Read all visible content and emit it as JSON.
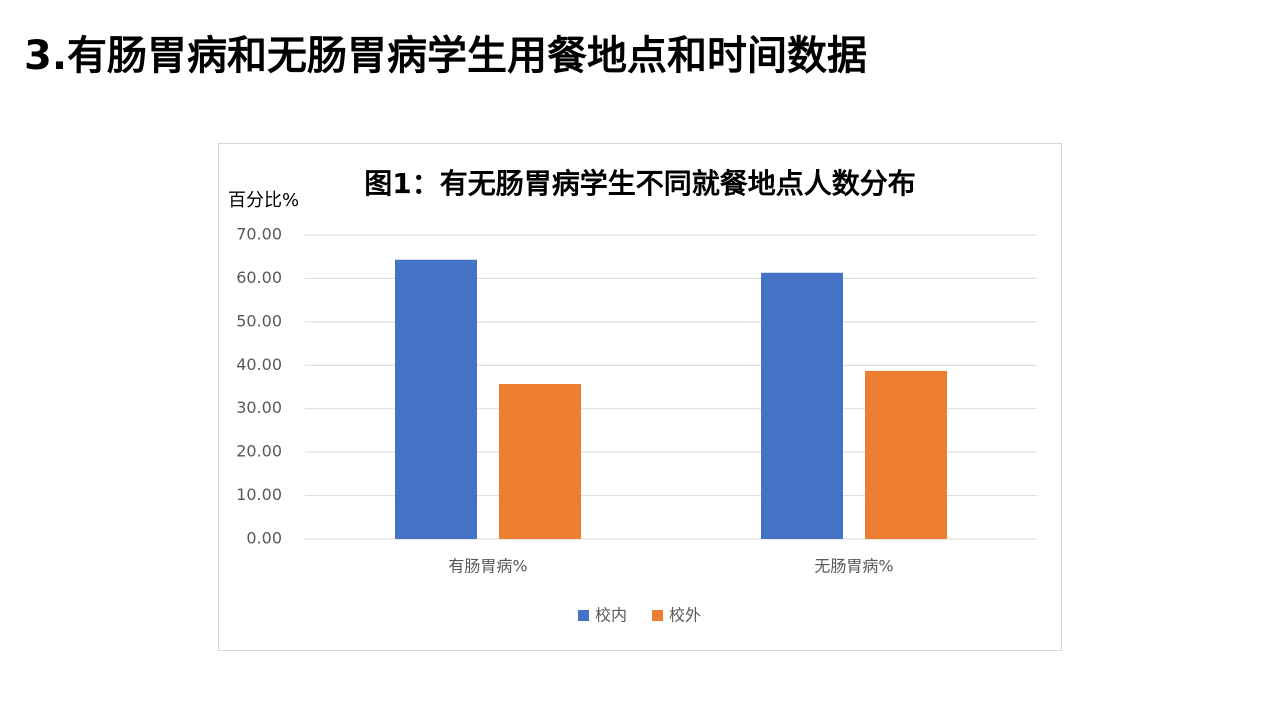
{
  "slide_title": "3.有肠胃病和无肠胃病学生用餐地点和时间数据",
  "chart_data": {
    "type": "bar",
    "title": "图1：有无肠胃病学生不同就餐地点人数分布",
    "y_label": "百分比%",
    "categories": [
      "有肠胃病%",
      "无肠胃病%"
    ],
    "series": [
      {
        "name": "校内",
        "color": "#4472c4",
        "values": [
          64.3,
          61.3
        ]
      },
      {
        "name": "校外",
        "color": "#ed7d31",
        "values": [
          35.7,
          38.7
        ]
      }
    ],
    "ylim": [
      0,
      70
    ],
    "yticks": [
      {
        "value": 0,
        "label": "0.00"
      },
      {
        "value": 10,
        "label": "10.00"
      },
      {
        "value": 20,
        "label": "20.00"
      },
      {
        "value": 30,
        "label": "30.00"
      },
      {
        "value": 40,
        "label": "40.00"
      },
      {
        "value": 50,
        "label": "50.00"
      },
      {
        "value": 60,
        "label": "60.00"
      },
      {
        "value": 70,
        "label": "70.00"
      }
    ],
    "grid": true,
    "legend": "bottom"
  }
}
